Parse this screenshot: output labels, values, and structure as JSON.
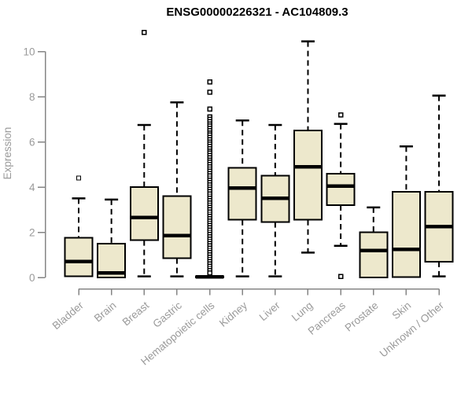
{
  "chart_data": {
    "type": "boxplot",
    "title": "ENSG00000226321 - AC104809.3",
    "ylabel": "Expression",
    "xlabel": "",
    "ylim": [
      0,
      10
    ],
    "yticks": [
      0,
      2,
      4,
      6,
      8,
      10
    ],
    "grid": false,
    "legend": "none",
    "colors": {
      "box_fill": "#ede8cc",
      "box_border": "#000000",
      "median": "#000000",
      "whisker": "#000000",
      "axis_line": "#858585",
      "axis_text": "#9a9a9a",
      "title_text": "#000000",
      "outlier_fill": "#ffffff"
    },
    "categories": [
      "Bladder",
      "Brain",
      "Breast",
      "Gastric",
      "Hematopoietic cells",
      "Kidney",
      "Liver",
      "Lung",
      "Pancreas",
      "Prostate",
      "Skin",
      "Unknown / Other"
    ],
    "series": [
      {
        "label": "Bladder",
        "whisker_low": 0.05,
        "q1": 0.05,
        "median": 0.7,
        "q3": 1.75,
        "whisker_high": 3.5,
        "outliers": [
          4.4
        ]
      },
      {
        "label": "Brain",
        "whisker_low": 0.0,
        "q1": 0.0,
        "median": 0.2,
        "q3": 1.5,
        "whisker_high": 3.45,
        "outliers": []
      },
      {
        "label": "Breast",
        "whisker_low": 0.05,
        "q1": 1.65,
        "median": 2.65,
        "q3": 4.0,
        "whisker_high": 6.75,
        "outliers": [
          10.85
        ]
      },
      {
        "label": "Gastric",
        "whisker_low": 0.05,
        "q1": 0.85,
        "median": 1.85,
        "q3": 3.6,
        "whisker_high": 7.75,
        "outliers": []
      },
      {
        "label": "Hematopoietic cells",
        "whisker_low": 0.0,
        "q1": 0.0,
        "median": 0.02,
        "q3": 0.05,
        "whisker_high": 0.05,
        "outliers": [
          8.65,
          8.2,
          7.45,
          7.1,
          7.0,
          6.9,
          6.8,
          6.7,
          6.6,
          6.5,
          6.4,
          6.3,
          6.2,
          6.1,
          6.0,
          5.9,
          5.8,
          5.7,
          5.6,
          5.5,
          5.4,
          5.3,
          5.2,
          5.1,
          5.0,
          4.9,
          4.8,
          4.7,
          4.6,
          4.5,
          4.4,
          4.3,
          4.2,
          4.1,
          4.0,
          3.9,
          3.8,
          3.7,
          3.6,
          3.5,
          3.4,
          3.3,
          3.2,
          3.1,
          3.0,
          2.9,
          2.8,
          2.7,
          2.6,
          2.5,
          2.4,
          2.3,
          2.2,
          2.1,
          2.0,
          1.9,
          1.8,
          1.7,
          1.6,
          1.5,
          1.4,
          1.3,
          1.2,
          1.1,
          1.0,
          0.9,
          0.8,
          0.7,
          0.6,
          0.5,
          0.4,
          0.3,
          0.2
        ]
      },
      {
        "label": "Kidney",
        "whisker_low": 0.05,
        "q1": 2.55,
        "median": 3.95,
        "q3": 4.85,
        "whisker_high": 6.95,
        "outliers": []
      },
      {
        "label": "Liver",
        "whisker_low": 0.05,
        "q1": 2.45,
        "median": 3.5,
        "q3": 4.5,
        "whisker_high": 6.75,
        "outliers": []
      },
      {
        "label": "Lung",
        "whisker_low": 1.1,
        "q1": 2.55,
        "median": 4.9,
        "q3": 6.5,
        "whisker_high": 10.45,
        "outliers": []
      },
      {
        "label": "Pancreas",
        "whisker_low": 1.4,
        "q1": 3.2,
        "median": 4.05,
        "q3": 4.6,
        "whisker_high": 6.8,
        "outliers": [
          7.2,
          0.05
        ]
      },
      {
        "label": "Prostate",
        "whisker_low": 0.0,
        "q1": 0.0,
        "median": 1.2,
        "q3": 2.0,
        "whisker_high": 3.1,
        "outliers": []
      },
      {
        "label": "Skin",
        "whisker_low": 0.02,
        "q1": 0.02,
        "median": 1.25,
        "q3": 3.8,
        "whisker_high": 5.8,
        "outliers": []
      },
      {
        "label": "Unknown / Other",
        "whisker_low": 0.05,
        "q1": 0.7,
        "median": 2.25,
        "q3": 3.8,
        "whisker_high": 8.05,
        "outliers": []
      }
    ]
  }
}
